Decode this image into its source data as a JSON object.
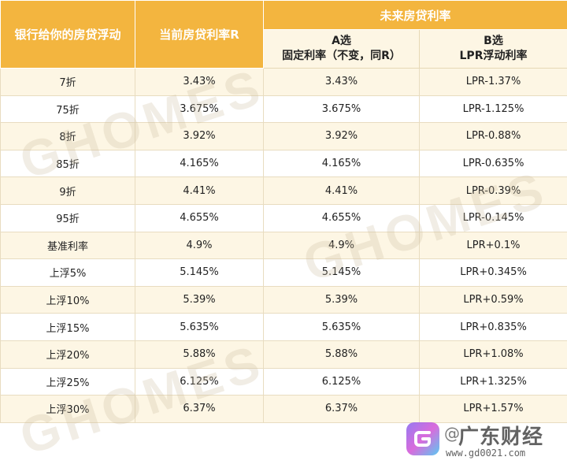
{
  "header": {
    "col1": "银行给你的房贷浮动",
    "col2": "当前房贷利率R",
    "future": "未来房贷利率",
    "optA_line1": "A选",
    "optA_line2": "固定利率（不变，同R）",
    "optB_line1": "B选",
    "optB_line2": "LPR浮动利率"
  },
  "rows": [
    {
      "float": "7折",
      "current": "3.43%",
      "fixed": "3.43%",
      "lpr": "LPR-1.37%"
    },
    {
      "float": "75折",
      "current": "3.675%",
      "fixed": "3.675%",
      "lpr": "LPR-1.125%"
    },
    {
      "float": "8折",
      "current": "3.92%",
      "fixed": "3.92%",
      "lpr": "LPR-0.88%"
    },
    {
      "float": "85折",
      "current": "4.165%",
      "fixed": "4.165%",
      "lpr": "LPR-0.635%"
    },
    {
      "float": "9折",
      "current": "4.41%",
      "fixed": "4.41%",
      "lpr": "LPR-0.39%"
    },
    {
      "float": "95折",
      "current": "4.655%",
      "fixed": "4.655%",
      "lpr": "LPR-0.145%"
    },
    {
      "float": "基准利率",
      "current": "4.9%",
      "fixed": "4.9%",
      "lpr": "LPR+0.1%"
    },
    {
      "float": "上浮5%",
      "current": "5.145%",
      "fixed": "5.145%",
      "lpr": "LPR+0.345%"
    },
    {
      "float": "上浮10%",
      "current": "5.39%",
      "fixed": "5.39%",
      "lpr": "LPR+0.59%"
    },
    {
      "float": "上浮15%",
      "current": "5.635%",
      "fixed": "5.635%",
      "lpr": "LPR+0.835%"
    },
    {
      "float": "上浮20%",
      "current": "5.88%",
      "fixed": "5.88%",
      "lpr": "LPR+1.08%"
    },
    {
      "float": "上浮25%",
      "current": "6.125%",
      "fixed": "6.125%",
      "lpr": "LPR+1.325%"
    },
    {
      "float": "上浮30%",
      "current": "6.37%",
      "fixed": "6.37%",
      "lpr": "LPR+1.57%"
    }
  ],
  "watermark": "GHOMES",
  "brand": {
    "name": "广东财经",
    "at": "@",
    "url": "www.gd0021.com",
    "logo_icon": "g-logo-icon"
  },
  "colors": {
    "header_bg": "#f3b53f",
    "stripe": "#fdf6e4"
  }
}
